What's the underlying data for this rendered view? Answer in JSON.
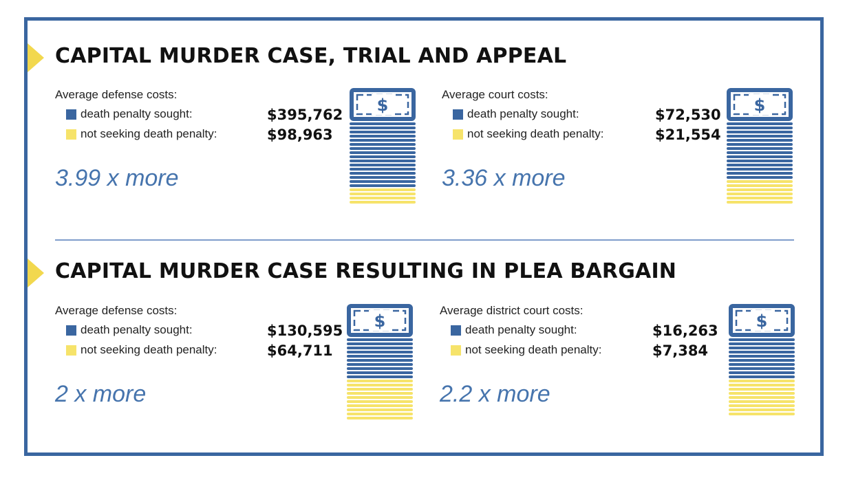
{
  "sections": [
    {
      "title": "CAPITAL MURDER CASE, TRIAL AND APPEAL",
      "panels": [
        {
          "heading": "Average defense costs:",
          "rows": [
            {
              "label": "death penalty sought:",
              "value": "$395,762"
            },
            {
              "label": "not seeking death penalty:",
              "value": "$98,963"
            }
          ],
          "ratio": "3.99 x more"
        },
        {
          "heading": "Average court costs:",
          "rows": [
            {
              "label": "death penalty sought:",
              "value": "$72,530"
            },
            {
              "label": "not seeking death penalty:",
              "value": "$21,554"
            }
          ],
          "ratio": "3.36 x more"
        }
      ]
    },
    {
      "title": "CAPITAL MURDER CASE RESULTING IN PLEA BARGAIN",
      "panels": [
        {
          "heading": "Average defense costs:",
          "rows": [
            {
              "label": "death penalty sought:",
              "value": "$130,595"
            },
            {
              "label": "not seeking death penalty:",
              "value": "$64,711"
            }
          ],
          "ratio": "2 x more"
        },
        {
          "heading": "Average district court costs:",
          "rows": [
            {
              "label": "death penalty sought:",
              "value": "$16,263"
            },
            {
              "label": "not seeking death penalty:",
              "value": "$7,384"
            }
          ],
          "ratio": "2.2 x more"
        }
      ]
    }
  ],
  "chart_data": {
    "type": "bar",
    "series_names": [
      "death penalty sought",
      "not seeking death penalty"
    ],
    "colors": {
      "death penalty sought": "#3a66a0",
      "not seeking death penalty": "#f6e36a"
    },
    "icon": "dollar-bill-icon",
    "groups": [
      {
        "section": "CAPITAL MURDER CASE, TRIAL AND APPEAL",
        "category": "Average defense costs",
        "values": [
          395762,
          98963
        ],
        "ratio": 3.99,
        "stack_bars": [
          16,
          4
        ]
      },
      {
        "section": "CAPITAL MURDER CASE, TRIAL AND APPEAL",
        "category": "Average court costs",
        "values": [
          72530,
          21554
        ],
        "ratio": 3.36,
        "stack_bars": [
          14,
          6
        ]
      },
      {
        "section": "CAPITAL MURDER CASE RESULTING IN PLEA BARGAIN",
        "category": "Average defense costs",
        "values": [
          130595,
          64711
        ],
        "ratio": 2,
        "stack_bars": [
          10,
          10
        ]
      },
      {
        "section": "CAPITAL MURDER CASE RESULTING IN PLEA BARGAIN",
        "category": "Average district court costs",
        "values": [
          16263,
          7384
        ],
        "ratio": 2.2,
        "stack_bars": [
          10,
          9
        ]
      }
    ]
  }
}
